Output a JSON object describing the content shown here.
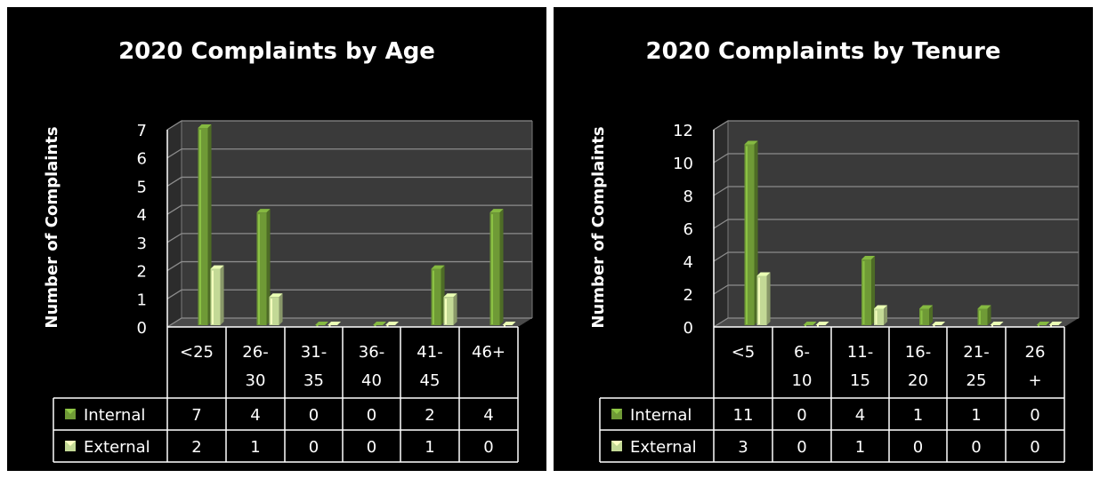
{
  "chart_data": [
    {
      "type": "bar",
      "title": "2020 Complaints by Age",
      "ylabel": "Number of Complaints",
      "xlabel": "",
      "ylim": [
        0,
        7
      ],
      "yticks": [
        "0",
        "1",
        "2",
        "3",
        "4",
        "5",
        "6",
        "7"
      ],
      "ytick_values": [
        0,
        1,
        2,
        3,
        4,
        5,
        6,
        7
      ],
      "categories": [
        "<25",
        "26-30",
        "31-35",
        "36-40",
        "41-45",
        "46+"
      ],
      "category_lines": [
        [
          "<25"
        ],
        [
          "26-",
          "30"
        ],
        [
          "31-",
          "35"
        ],
        [
          "36-",
          "40"
        ],
        [
          "41-",
          "45"
        ],
        [
          "46+"
        ]
      ],
      "series": [
        {
          "name": "Internal",
          "values": [
            7,
            4,
            0,
            0,
            2,
            4
          ],
          "color": "#6f9a36"
        },
        {
          "name": "External",
          "values": [
            2,
            1,
            0,
            0,
            1,
            0
          ],
          "color": "#c3d996"
        }
      ],
      "grid": true,
      "legend": "data table"
    },
    {
      "type": "bar",
      "title": "2020 Complaints by Tenure",
      "ylabel": "Number of Complaints",
      "xlabel": "",
      "ylim": [
        0,
        12
      ],
      "yticks": [
        "0",
        "2",
        "4",
        "6",
        "8",
        "10",
        "12"
      ],
      "ytick_values": [
        0,
        2,
        4,
        6,
        8,
        10,
        12
      ],
      "categories": [
        "<5",
        "6-10",
        "11-15",
        "16-20",
        "21-25",
        "26+"
      ],
      "category_lines": [
        [
          "<5"
        ],
        [
          "6-",
          "10"
        ],
        [
          "11-",
          "15"
        ],
        [
          "16-",
          "20"
        ],
        [
          "21-",
          "25"
        ],
        [
          "26",
          "+"
        ]
      ],
      "series": [
        {
          "name": "Internal",
          "values": [
            11,
            0,
            4,
            1,
            1,
            0
          ],
          "color": "#6f9a36"
        },
        {
          "name": "External",
          "values": [
            3,
            0,
            1,
            0,
            0,
            0
          ],
          "color": "#c3d996"
        }
      ],
      "grid": true,
      "legend": "data table"
    }
  ]
}
